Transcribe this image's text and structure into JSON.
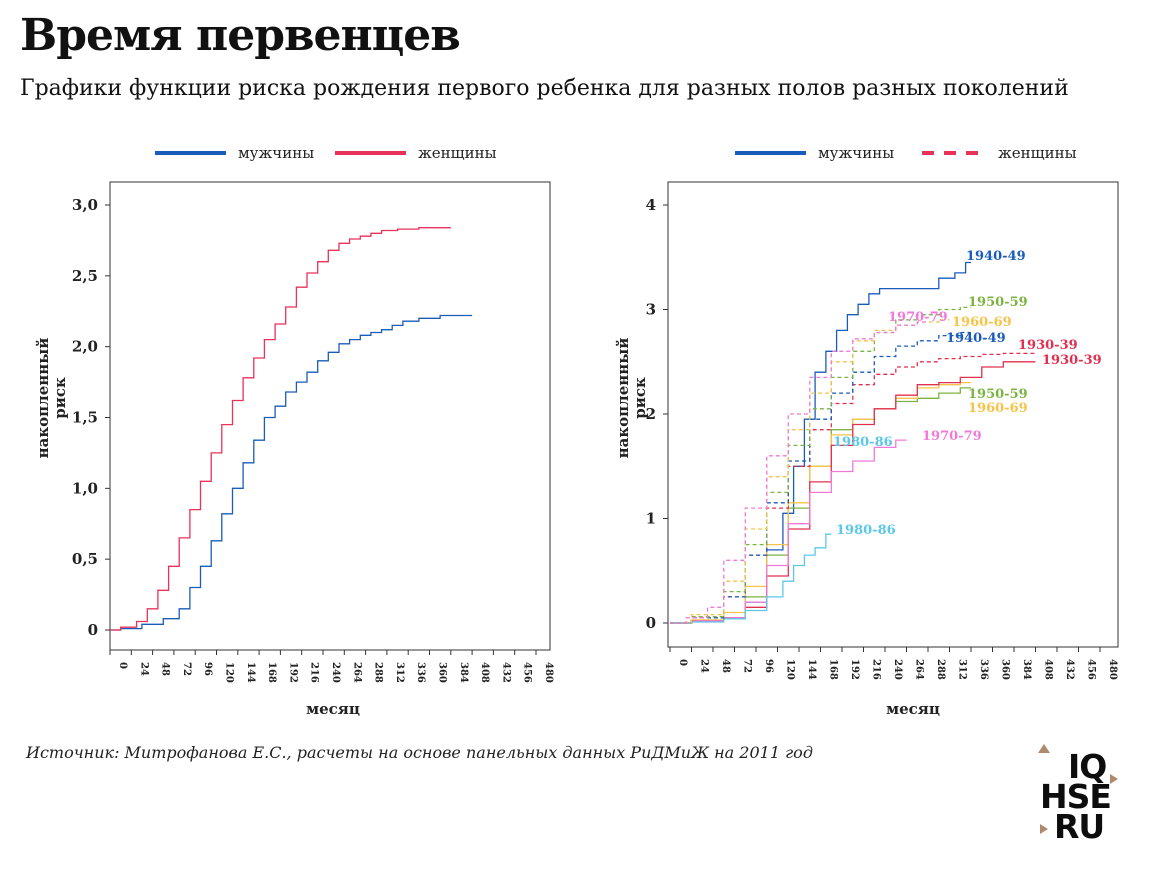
{
  "title": "Время первенцев",
  "subtitle": "Графики функции риска рождения первого ребенка для разных полов разных поколений",
  "source": "Источник: Митрофанова Е.С., расчеты на основе панельных данных РиДМиЖ на 2011 год",
  "logo": {
    "line1": "IQ",
    "line2": "HSE",
    "line3": "RU"
  },
  "colors": {
    "men": "#1a5cba",
    "women": "#e8325a",
    "c1930": "#e03050",
    "c1940": "#1a5cba",
    "c1950": "#7cb342",
    "c1960": "#f7c34a",
    "c1970": "#f07ad8",
    "c1980": "#5bc8e8"
  },
  "chart_data": [
    {
      "type": "line",
      "legend": [
        {
          "label": "мужчины",
          "style": "solid",
          "color": "#1a5cba"
        },
        {
          "label": "женщины",
          "style": "solid",
          "color": "#e8325a"
        }
      ],
      "legend_position": "top",
      "xlabel": "месяц",
      "ylabel": "накопленный риск",
      "xlim": [
        0,
        480
      ],
      "ylim": [
        0,
        3
      ],
      "xticks": [
        "0",
        "24",
        "48",
        "72",
        "96",
        "120",
        "144",
        "168",
        "192",
        "216",
        "240",
        "264",
        "288",
        "312",
        "336",
        "360",
        "384",
        "408",
        "432",
        "456",
        "480"
      ],
      "yticks": [
        "0",
        "0,5",
        "1,0",
        "1,5",
        "2,0",
        "2,5",
        "3,0"
      ],
      "series": [
        {
          "name": "мужчины",
          "color": "#1a5cba",
          "dash": "solid",
          "x": [
            0,
            24,
            48,
            72,
            84,
            96,
            108,
            120,
            132,
            144,
            156,
            168,
            180,
            192,
            204,
            216,
            228,
            240,
            252,
            264,
            276,
            288,
            300,
            312,
            324,
            336,
            360,
            384,
            408
          ],
          "y": [
            0,
            0.01,
            0.04,
            0.08,
            0.15,
            0.3,
            0.45,
            0.63,
            0.82,
            1.0,
            1.18,
            1.34,
            1.5,
            1.58,
            1.68,
            1.75,
            1.82,
            1.9,
            1.96,
            2.02,
            2.05,
            2.08,
            2.1,
            2.12,
            2.15,
            2.18,
            2.2,
            2.22,
            2.22
          ]
        },
        {
          "name": "женщины",
          "color": "#e8325a",
          "dash": "solid",
          "x": [
            0,
            24,
            36,
            48,
            60,
            72,
            84,
            96,
            108,
            120,
            132,
            144,
            156,
            168,
            180,
            192,
            204,
            216,
            228,
            240,
            252,
            264,
            276,
            288,
            300,
            312,
            336,
            360,
            384
          ],
          "y": [
            0,
            0.02,
            0.06,
            0.15,
            0.28,
            0.45,
            0.65,
            0.85,
            1.05,
            1.25,
            1.45,
            1.62,
            1.78,
            1.92,
            2.05,
            2.16,
            2.28,
            2.42,
            2.52,
            2.6,
            2.68,
            2.73,
            2.76,
            2.78,
            2.8,
            2.82,
            2.83,
            2.84,
            2.84
          ]
        }
      ]
    },
    {
      "type": "line",
      "legend": [
        {
          "label": "мужчины",
          "style": "solid",
          "color": "#1a5cba"
        },
        {
          "label": "женщины",
          "style": "dashed",
          "color": "#e8325a"
        }
      ],
      "legend_position": "top",
      "xlabel": "месяц",
      "ylabel": "накопленный риск",
      "xlim": [
        0,
        480
      ],
      "ylim": [
        0,
        4
      ],
      "xticks": [
        "0",
        "24",
        "48",
        "72",
        "96",
        "120",
        "144",
        "168",
        "192",
        "216",
        "240",
        "264",
        "288",
        "312",
        "336",
        "360",
        "384",
        "408",
        "432",
        "456",
        "480"
      ],
      "yticks": [
        "0",
        "1",
        "2",
        "3",
        "4"
      ],
      "series": [
        {
          "label": "1940-49",
          "color": "#1a5cba",
          "dash": "solid",
          "x": [
            0,
            48,
            72,
            96,
            120,
            132,
            144,
            156,
            168,
            180,
            192,
            204,
            216,
            228,
            240,
            264,
            288,
            312,
            324,
            336
          ],
          "y": [
            0,
            0.02,
            0.05,
            0.2,
            0.7,
            1.05,
            1.5,
            1.95,
            2.4,
            2.6,
            2.8,
            2.95,
            3.05,
            3.15,
            3.2,
            3.2,
            3.2,
            3.3,
            3.35,
            3.45
          ]
        },
        {
          "label": "1950-59",
          "color": "#7cb342",
          "dash": "solid",
          "x": [
            0,
            48,
            72,
            96,
            120,
            144,
            168,
            192,
            216,
            240,
            264,
            288,
            312,
            336
          ],
          "y": [
            0,
            0.02,
            0.05,
            0.25,
            0.65,
            1.1,
            1.5,
            1.85,
            1.95,
            2.05,
            2.12,
            2.15,
            2.2,
            2.25
          ]
        },
        {
          "label": "1960-69",
          "color": "#f7c34a",
          "dash": "solid",
          "x": [
            0,
            48,
            72,
            96,
            120,
            144,
            168,
            192,
            216,
            240,
            264,
            288,
            312,
            336
          ],
          "y": [
            0,
            0.03,
            0.1,
            0.35,
            0.75,
            1.15,
            1.5,
            1.8,
            1.95,
            2.05,
            2.15,
            2.25,
            2.28,
            2.3
          ]
        },
        {
          "label": "1930-39",
          "color": "#e03050",
          "dash": "solid",
          "x": [
            0,
            48,
            72,
            96,
            120,
            144,
            168,
            192,
            216,
            240,
            264,
            288,
            312,
            336,
            360,
            384,
            408
          ],
          "y": [
            0,
            0.02,
            0.05,
            0.15,
            0.45,
            0.9,
            1.35,
            1.7,
            1.9,
            2.05,
            2.18,
            2.28,
            2.3,
            2.35,
            2.45,
            2.5,
            2.5
          ]
        },
        {
          "label": "1970-79",
          "color": "#f07ad8",
          "dash": "solid",
          "x": [
            0,
            48,
            72,
            96,
            120,
            144,
            168,
            192,
            216,
            240,
            264
          ],
          "y": [
            0,
            0.02,
            0.05,
            0.2,
            0.55,
            0.95,
            1.25,
            1.45,
            1.55,
            1.68,
            1.75
          ]
        },
        {
          "label": "1980-86",
          "color": "#5bc8e8",
          "dash": "solid",
          "x": [
            0,
            48,
            72,
            96,
            120,
            132,
            144,
            156,
            168,
            180
          ],
          "y": [
            0,
            0.01,
            0.04,
            0.12,
            0.25,
            0.4,
            0.55,
            0.65,
            0.72,
            0.85
          ]
        },
        {
          "label": "1930-39",
          "color": "#e03050",
          "dash": "dashed",
          "x": [
            0,
            48,
            72,
            96,
            120,
            144,
            168,
            192,
            216,
            240,
            264,
            288,
            312,
            336,
            360,
            384,
            408
          ],
          "y": [
            0,
            0.05,
            0.25,
            0.65,
            1.1,
            1.5,
            1.85,
            2.1,
            2.28,
            2.38,
            2.45,
            2.5,
            2.53,
            2.55,
            2.57,
            2.58,
            2.58
          ]
        },
        {
          "label": "1940-49",
          "color": "#1a5cba",
          "dash": "dashed",
          "x": [
            0,
            48,
            72,
            96,
            120,
            144,
            168,
            192,
            216,
            240,
            264,
            288,
            312,
            336
          ],
          "y": [
            0,
            0.05,
            0.25,
            0.65,
            1.15,
            1.55,
            1.95,
            2.2,
            2.4,
            2.55,
            2.65,
            2.7,
            2.75,
            2.78
          ]
        },
        {
          "label": "1950-59",
          "color": "#7cb342",
          "dash": "dashed",
          "x": [
            0,
            48,
            72,
            96,
            120,
            144,
            168,
            192,
            216,
            240,
            264,
            288,
            312,
            336
          ],
          "y": [
            0,
            0.06,
            0.3,
            0.75,
            1.25,
            1.7,
            2.05,
            2.35,
            2.6,
            2.78,
            2.9,
            2.95,
            3.0,
            3.02
          ]
        },
        {
          "label": "1960-69",
          "color": "#f7c34a",
          "dash": "dashed",
          "x": [
            0,
            48,
            72,
            96,
            120,
            144,
            168,
            192,
            216,
            240,
            264,
            288,
            312
          ],
          "y": [
            0,
            0.08,
            0.4,
            0.9,
            1.4,
            1.85,
            2.2,
            2.5,
            2.7,
            2.8,
            2.85,
            2.88,
            2.9
          ]
        },
        {
          "label": "1970-79",
          "color": "#f07ad8",
          "dash": "dashed",
          "x": [
            0,
            36,
            48,
            72,
            96,
            120,
            144,
            168,
            192,
            216,
            240,
            264,
            288
          ],
          "y": [
            0,
            0.05,
            0.15,
            0.6,
            1.1,
            1.6,
            2.0,
            2.35,
            2.6,
            2.72,
            2.78,
            2.85,
            2.88
          ]
        }
      ],
      "annotations": [
        "1940-49",
        "1950-59",
        "1970-79",
        "1960-69",
        "1940-49",
        "1930-39",
        "1930-39",
        "1950-59",
        "1960-69",
        "1970-79",
        "1980-86",
        "1980-86"
      ]
    }
  ]
}
